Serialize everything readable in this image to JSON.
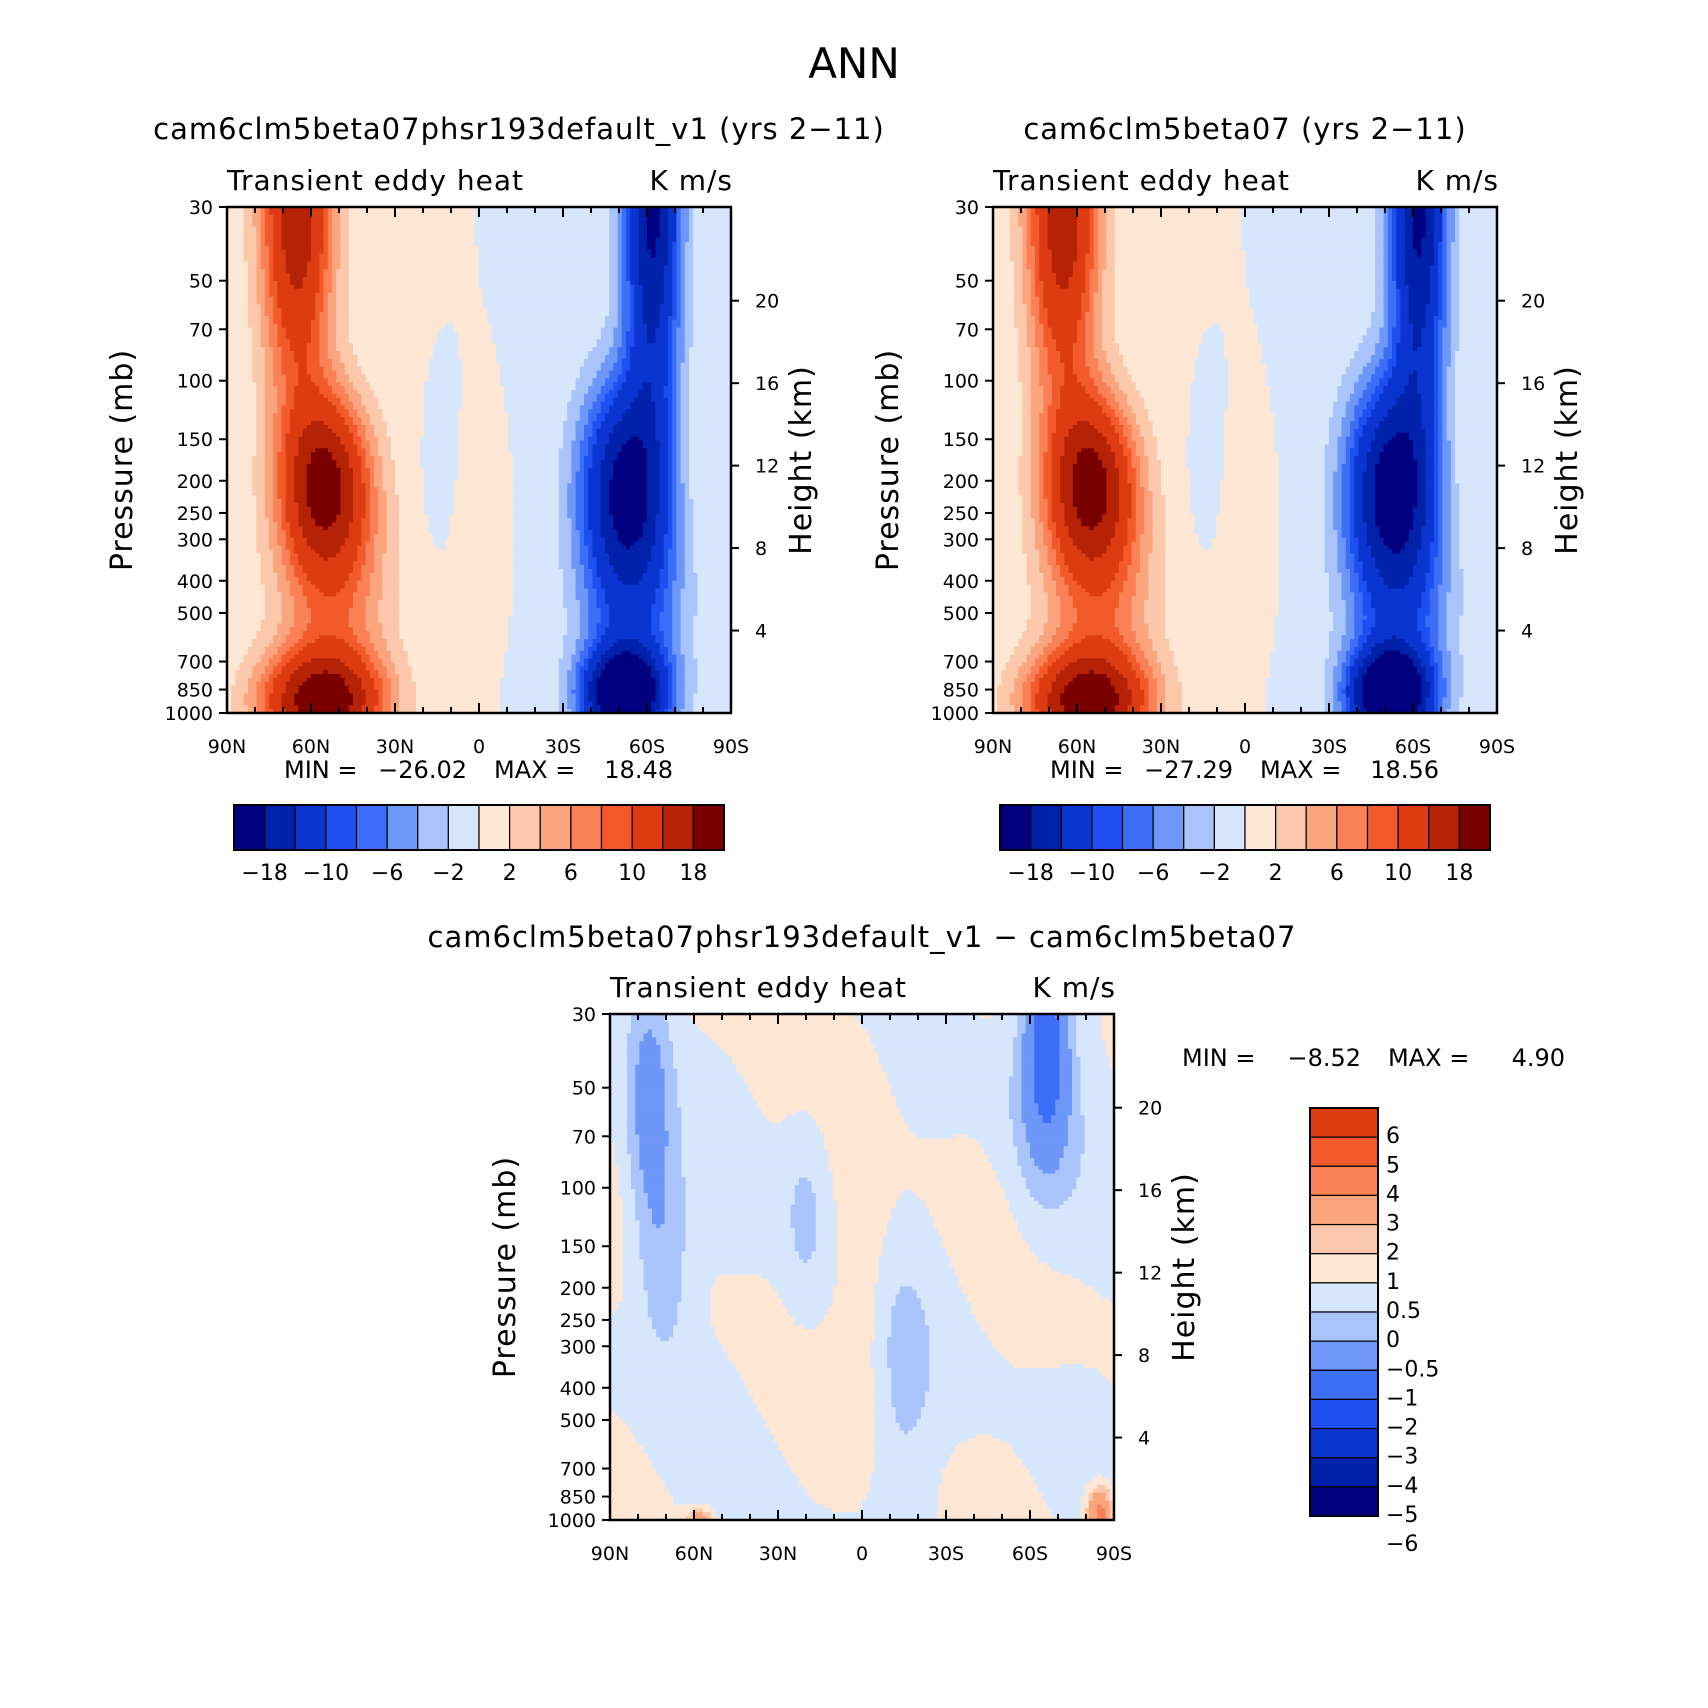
{
  "figure": {
    "season": "ANN"
  },
  "panels": [
    {
      "title": "cam6clm5beta07phsr193default_v1 (yrs 2-11)",
      "subtitle_left": "Transient eddy heat",
      "subtitle_right": "K m/s",
      "min_label": "MIN =",
      "min_value": "-26.02",
      "max_label": "MAX =",
      "max_value": "18.48"
    },
    {
      "title": "cam6clm5beta07 (yrs 2-11)",
      "subtitle_left": "Transient eddy heat",
      "subtitle_right": "K m/s",
      "min_label": "MIN =",
      "min_value": "-27.29",
      "max_label": "MAX =",
      "max_value": "18.56"
    },
    {
      "title": "cam6clm5beta07phsr193default_v1 - cam6clm5beta07",
      "subtitle_left": "Transient eddy heat",
      "subtitle_right": "K m/s",
      "min_label": "MIN =",
      "min_value": "-8.52",
      "max_label": "MAX =",
      "max_value": "4.90"
    }
  ],
  "colors": {
    "scale16": [
      "#000080",
      "#0022aa",
      "#0a35d0",
      "#1f4ff0",
      "#3d6ef7",
      "#6d97f9",
      "#a8c4fb",
      "#d5e6fd",
      "#fde6d3",
      "#fcc8ab",
      "#fba57f",
      "#fa8156",
      "#f25a2c",
      "#dd3b12",
      "#b52206",
      "#7a0000"
    ],
    "scale14": [
      "#000080",
      "#0022aa",
      "#0a35d0",
      "#1f4ff0",
      "#3d6ef7",
      "#6d97f9",
      "#a8c4fb",
      "#d5e6fd",
      "#fde6d3",
      "#fcc8ab",
      "#fba57f",
      "#fa8156",
      "#f25a2c",
      "#dd3b12"
    ]
  },
  "chart_data": [
    {
      "type": "contour",
      "title": "cam6clm5beta07phsr193default_v1 (yrs 2-11)",
      "variable": "Transient eddy heat",
      "units": "K m/s",
      "xlabel": "",
      "ylabel": "Pressure (mb)",
      "ylabel_right": "Height (km)",
      "x_ticks": [
        "90N",
        "60N",
        "30N",
        "0",
        "30S",
        "60S",
        "90S"
      ],
      "y_ticks": [
        30,
        50,
        70,
        100,
        150,
        200,
        250,
        300,
        400,
        500,
        700,
        850,
        1000
      ],
      "y2_ticks": [
        20,
        16,
        12,
        8,
        4
      ],
      "y_range_mb": [
        1000,
        30
      ],
      "x_range_deg": [
        90,
        -90
      ],
      "min": -26.02,
      "max": 18.48,
      "features": [
        {
          "lat": 55,
          "p": 200,
          "value": 16
        },
        {
          "lat": 55,
          "p": 900,
          "value": 18
        },
        {
          "lat": 65,
          "p": 30,
          "value": 16
        },
        {
          "lat": -52,
          "p": 200,
          "value": -16
        },
        {
          "lat": -52,
          "p": 850,
          "value": -26
        },
        {
          "lat": -62,
          "p": 30,
          "value": -18
        }
      ],
      "colorbar": {
        "orientation": "horizontal",
        "levels": [
          -18,
          -14,
          -10,
          -8,
          -6,
          -4,
          -2,
          0,
          2,
          4,
          6,
          8,
          10,
          14,
          18
        ],
        "labels": [
          "-18",
          "-10",
          "-6",
          "-2",
          "2",
          "6",
          "10",
          "18"
        ]
      }
    },
    {
      "type": "contour",
      "title": "cam6clm5beta07 (yrs 2-11)",
      "variable": "Transient eddy heat",
      "units": "K m/s",
      "xlabel": "",
      "ylabel": "Pressure (mb)",
      "ylabel_right": "Height (km)",
      "x_ticks": [
        "90N",
        "60N",
        "30N",
        "0",
        "30S",
        "60S",
        "90S"
      ],
      "y_ticks": [
        30,
        50,
        70,
        100,
        150,
        200,
        250,
        300,
        400,
        500,
        700,
        850,
        1000
      ],
      "y2_ticks": [
        20,
        16,
        12,
        8,
        4
      ],
      "y_range_mb": [
        1000,
        30
      ],
      "x_range_deg": [
        90,
        -90
      ],
      "min": -27.29,
      "max": 18.56,
      "features": [
        {
          "lat": 55,
          "p": 200,
          "value": 16
        },
        {
          "lat": 55,
          "p": 900,
          "value": 18
        },
        {
          "lat": 65,
          "p": 30,
          "value": 16
        },
        {
          "lat": -52,
          "p": 200,
          "value": -17
        },
        {
          "lat": -52,
          "p": 850,
          "value": -27
        },
        {
          "lat": -62,
          "p": 30,
          "value": -18
        }
      ],
      "colorbar": {
        "orientation": "horizontal",
        "levels": [
          -18,
          -14,
          -10,
          -8,
          -6,
          -4,
          -2,
          0,
          2,
          4,
          6,
          8,
          10,
          14,
          18
        ],
        "labels": [
          "-18",
          "-10",
          "-6",
          "-2",
          "2",
          "6",
          "10",
          "18"
        ]
      }
    },
    {
      "type": "contour",
      "title": "cam6clm5beta07phsr193default_v1 - cam6clm5beta07",
      "variable": "Transient eddy heat",
      "units": "K m/s",
      "xlabel": "",
      "ylabel": "Pressure (mb)",
      "ylabel_right": "Height (km)",
      "x_ticks": [
        "90N",
        "60N",
        "30N",
        "0",
        "30S",
        "60S",
        "90S"
      ],
      "y_ticks": [
        30,
        50,
        70,
        100,
        150,
        200,
        250,
        300,
        400,
        500,
        700,
        850,
        1000
      ],
      "y2_ticks": [
        20,
        16,
        12,
        8,
        4
      ],
      "y_range_mb": [
        1000,
        30
      ],
      "x_range_deg": [
        90,
        -90
      ],
      "min": -8.52,
      "max": 4.9,
      "features": [
        {
          "lat": 76,
          "p": 60,
          "value": -1
        },
        {
          "lat": -65,
          "p": 35,
          "value": -2
        },
        {
          "lat": 55,
          "p": 980,
          "value": 1
        },
        {
          "lat": -85,
          "p": 950,
          "value": 2
        }
      ],
      "colorbar": {
        "orientation": "vertical",
        "levels": [
          -6,
          -5,
          -4,
          -3,
          -2,
          -1,
          -0.5,
          0,
          0.5,
          1,
          2,
          3,
          4,
          5,
          6
        ],
        "labels": [
          "6",
          "5",
          "4",
          "3",
          "2",
          "1",
          "0.5",
          "0",
          "-0.5",
          "-1",
          "-2",
          "-3",
          "-4",
          "-5",
          "-6"
        ]
      }
    }
  ]
}
